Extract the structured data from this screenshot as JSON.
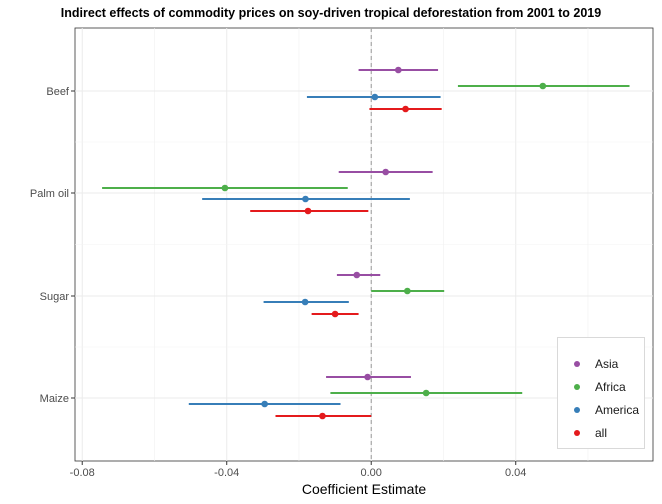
{
  "title": "Indirect effects of commodity prices on soy-driven tropical deforestation from 2001 to 2019",
  "chart_data": {
    "type": "scatter",
    "subtype": "coefficient-plot",
    "title": "Indirect effects of commodity prices on soy-driven tropical deforestation from 2001 to 2019",
    "xlabel": "Coefficient Estimate",
    "ylabel": "",
    "xlim": [
      -0.082,
      0.078
    ],
    "xticks": [
      -0.08,
      -0.04,
      0.0,
      0.04
    ],
    "xtick_labels": [
      "-0.08",
      "-0.04",
      "0.00",
      "0.04"
    ],
    "categories": [
      "Beef",
      "Palm oil",
      "Sugar",
      "Maize"
    ],
    "reference_line": 0,
    "grid": true,
    "legend_position": "bottom-right",
    "series": [
      {
        "name": "Asia",
        "color": "#984EA3",
        "estimates": [
          0.0075,
          0.004,
          -0.004,
          -0.001
        ],
        "lower": [
          -0.0035,
          -0.009,
          -0.0095,
          -0.0125
        ],
        "upper": [
          0.0185,
          0.017,
          0.0025,
          0.011
        ]
      },
      {
        "name": "Africa",
        "color": "#4DAF4A",
        "estimates": [
          0.0475,
          -0.0405,
          0.01,
          0.0152
        ],
        "lower": [
          0.024,
          -0.0745,
          0.0,
          -0.0113
        ],
        "upper": [
          0.0715,
          -0.0065,
          0.0202,
          0.0418
        ]
      },
      {
        "name": "America",
        "color": "#377EB8",
        "estimates": [
          0.001,
          -0.0182,
          -0.0183,
          -0.0295
        ],
        "lower": [
          -0.0178,
          -0.0468,
          -0.0298,
          -0.0505
        ],
        "upper": [
          0.0192,
          0.0107,
          -0.0062,
          -0.0085
        ]
      },
      {
        "name": "all",
        "color": "#E41A1C",
        "estimates": [
          0.0095,
          -0.0175,
          -0.01,
          -0.0135
        ],
        "lower": [
          -0.0005,
          -0.0335,
          -0.0165,
          -0.0265
        ],
        "upper": [
          0.0195,
          -0.0008,
          -0.0035,
          0.0
        ]
      }
    ],
    "legend_order": [
      "Asia",
      "Africa",
      "America",
      "all"
    ]
  }
}
